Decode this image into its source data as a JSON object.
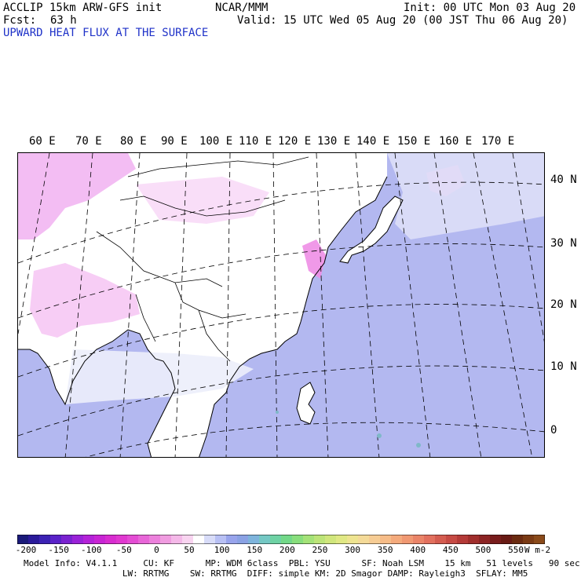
{
  "header": {
    "model": "ACCLIP 15km ARW-GFS init",
    "org": "NCAR/MMM",
    "init": "Init: 00 UTC Mon 03 Aug 20",
    "fcst_label": "Fcst:",
    "fcst_value": "63 h",
    "valid": "Valid: 15 UTC Wed 05 Aug 20 (00 JST Thu 06 Aug 20)",
    "field": "UPWARD HEAT FLUX AT THE SURFACE"
  },
  "map": {
    "lon_labels": [
      "60 E",
      "70 E",
      "80 E",
      "90 E",
      "100 E",
      "110 E",
      "120 E",
      "130 E",
      "140 E",
      "150 E",
      "160 E",
      "170 E"
    ],
    "lat_labels": [
      "40 N",
      "30 N",
      "20 N",
      "10 N",
      "0"
    ],
    "colors": {
      "ocean": "#b3b8f0",
      "land": "#ffffff",
      "pink": "#f0a8f0",
      "light_pink": "#f8d8f8",
      "coast": "#000000",
      "grid": "#000000"
    }
  },
  "colorbar": {
    "ticks": [
      "-200",
      "-150",
      "-100",
      "-50",
      "0",
      "50",
      "100",
      "150",
      "200",
      "250",
      "300",
      "350",
      "400",
      "450",
      "500",
      "550"
    ],
    "units": "W m-2",
    "colors": [
      "#1a1a7a",
      "#2a1a9a",
      "#3c22b4",
      "#5a22c8",
      "#7a22d0",
      "#9a22d8",
      "#b422d8",
      "#c824d4",
      "#d82cd0",
      "#e038d0",
      "#e44cd4",
      "#e866d8",
      "#ec80dc",
      "#f09ce0",
      "#f4b8e8",
      "#f8d4f0",
      "#ffffff",
      "#d8dcf8",
      "#b8c0f4",
      "#98a4ec",
      "#8aa2e4",
      "#7eb4dc",
      "#74c8c4",
      "#6ed2a4",
      "#72d888",
      "#88de7c",
      "#a4e278",
      "#bce478",
      "#d0e67c",
      "#e0e884",
      "#eee490",
      "#f4da98",
      "#f6cc94",
      "#f6bc88",
      "#f4aa7c",
      "#f09872",
      "#ea8468",
      "#e2705e",
      "#d45c50",
      "#c64a44",
      "#b43a38",
      "#a02e2c",
      "#8c2424",
      "#781c1c",
      "#681a14",
      "#6a2a10",
      "#7a3a14",
      "#8a4a1a"
    ]
  },
  "info": {
    "line1": "Model Info: V4.1.1     CU: KF      MP: WDM 6class  PBL: YSU      SF: Noah LSM    15 km   51 levels   90 sec",
    "line2": "                   LW: RRTMG    SW: RRTMG  DIFF: simple KM: 2D Smagor DAMP: Rayleigh3  SFLAY: MM5"
  }
}
